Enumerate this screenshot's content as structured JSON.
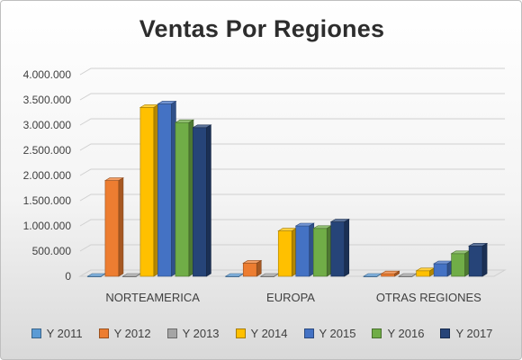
{
  "chart_data": {
    "type": "bar",
    "title": "Ventas Por Regiones",
    "categories": [
      "NORTEAMERICA",
      "EUROPA",
      "OTRAS REGIONES"
    ],
    "series": [
      {
        "name": "Y 2011",
        "color": "#5b9bd5",
        "values": [
          0,
          0,
          0
        ]
      },
      {
        "name": "Y 2012",
        "color": "#ed7d31",
        "values": [
          1900000,
          260000,
          50000
        ]
      },
      {
        "name": "Y 2013",
        "color": "#a5a5a5",
        "values": [
          0,
          0,
          0
        ]
      },
      {
        "name": "Y 2014",
        "color": "#ffc000",
        "values": [
          3350000,
          900000,
          110000
        ]
      },
      {
        "name": "Y 2015",
        "color": "#4472c4",
        "values": [
          3420000,
          1000000,
          250000
        ]
      },
      {
        "name": "Y 2016",
        "color": "#70ad47",
        "values": [
          3050000,
          950000,
          450000
        ]
      },
      {
        "name": "Y 2017",
        "color": "#264478",
        "values": [
          2950000,
          1080000,
          600000
        ]
      }
    ],
    "yticks": [
      "4.000.000",
      "3.500.000",
      "3.000.000",
      "2.500.000",
      "2.000.000",
      "1.500.000",
      "1.000.000",
      "500.000",
      "0"
    ],
    "ylim": [
      0,
      4000000
    ],
    "xlabel": "",
    "ylabel": "",
    "grid": true,
    "legend_position": "bottom"
  }
}
